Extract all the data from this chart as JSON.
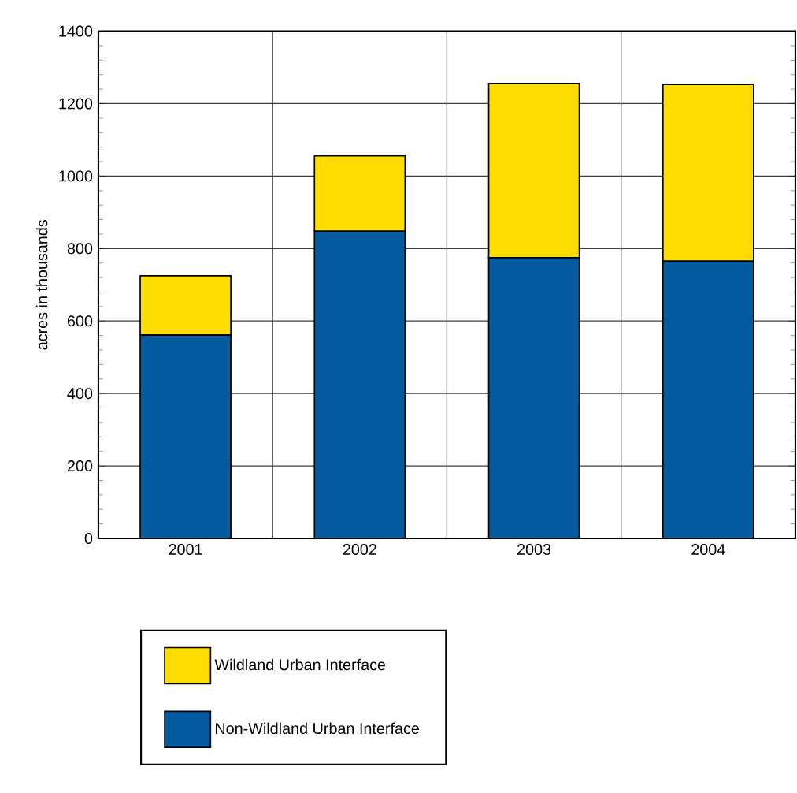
{
  "chart_data": {
    "type": "bar",
    "stacked": true,
    "ylabel": "acres in thousands",
    "categories": [
      "2001",
      "2002",
      "2003",
      "2004"
    ],
    "series": [
      {
        "name": "Non-Wildland Urban Interface",
        "color": "#045ba0",
        "values": [
          561,
          848,
          775,
          765
        ]
      },
      {
        "name": "Wildland Urban Interface",
        "color": "#ffdd00",
        "values": [
          164,
          208,
          481,
          488
        ]
      }
    ],
    "ylim": [
      0,
      1400
    ],
    "yticks": [
      0,
      200,
      400,
      600,
      800,
      1000,
      1200,
      1400
    ],
    "grid": true,
    "legend": "bottom"
  }
}
